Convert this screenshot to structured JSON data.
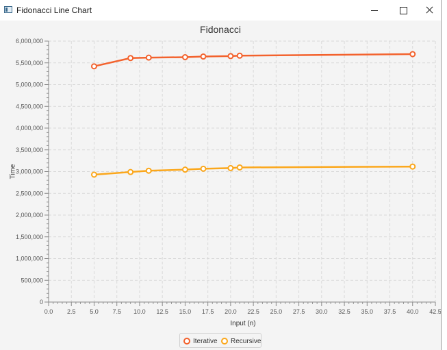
{
  "window": {
    "title": "Fidonacci Line Chart"
  },
  "chart_data": {
    "type": "line",
    "title": "Fidonacci",
    "xlabel": "Input (n)",
    "ylabel": "Time",
    "xlim": [
      0,
      42.5
    ],
    "ylim": [
      0,
      6000000
    ],
    "x_ticks": [
      "0.0",
      "2.5",
      "5.0",
      "7.5",
      "10.0",
      "12.5",
      "15.0",
      "17.5",
      "20.0",
      "22.5",
      "25.0",
      "27.5",
      "30.0",
      "32.5",
      "35.0",
      "37.5",
      "40.0",
      "42.5"
    ],
    "y_ticks": [
      "0",
      "500,000",
      "1,000,000",
      "1,500,000",
      "2,000,000",
      "2,500,000",
      "3,000,000",
      "3,500,000",
      "4,000,000",
      "4,500,000",
      "5,000,000",
      "5,500,000",
      "6,000,000"
    ],
    "grid": true,
    "legend_position": "bottom",
    "series": [
      {
        "name": "Iterative",
        "color": "#f3622d",
        "x": [
          5,
          9,
          11,
          15,
          17,
          20,
          21,
          40
        ],
        "y": [
          5420000,
          5610000,
          5620000,
          5630000,
          5645000,
          5655000,
          5665000,
          5700000
        ]
      },
      {
        "name": "Recursive",
        "color": "#fba71b",
        "x": [
          5,
          9,
          11,
          15,
          17,
          20,
          21,
          40
        ],
        "y": [
          2930000,
          2990000,
          3020000,
          3045000,
          3065000,
          3080000,
          3095000,
          3115000
        ]
      }
    ]
  }
}
